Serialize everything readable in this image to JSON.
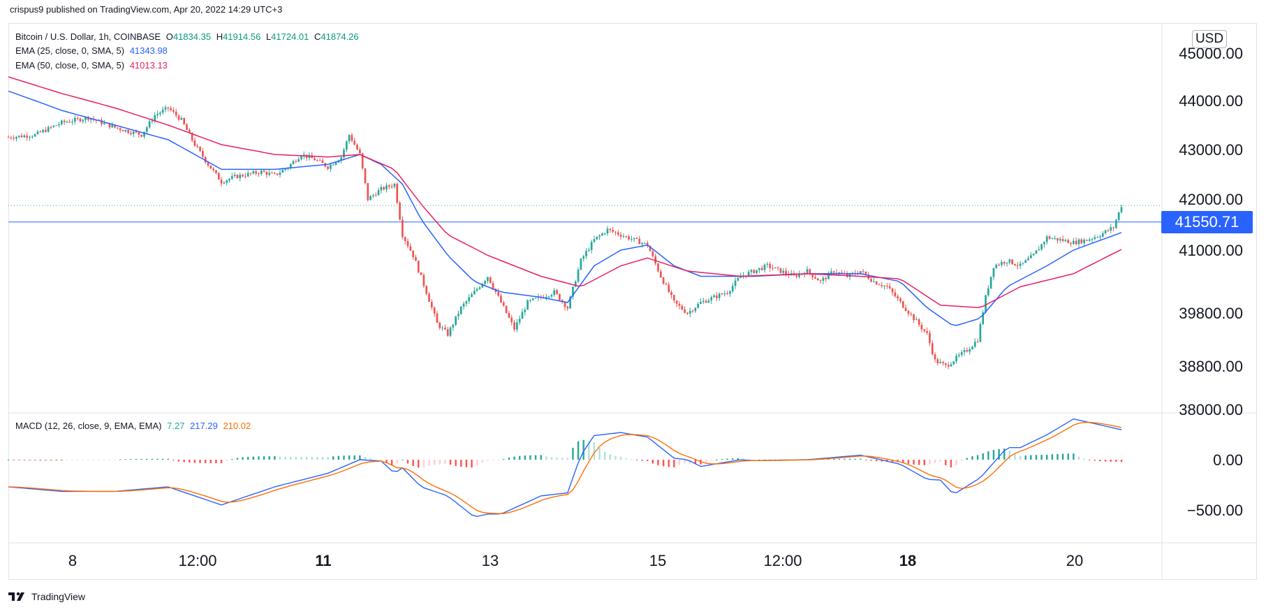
{
  "header": {
    "published": "crispus9 published on TradingView.com, Apr 20, 2022 14:29 UTC+3"
  },
  "legend": {
    "symbol": "Bitcoin / U.S. Dollar, 1h, COINBASE",
    "open_label": "O",
    "open": "41834.35",
    "high_label": "H",
    "high": "41914.56",
    "low_label": "L",
    "low": "41724.01",
    "close_label": "C",
    "close": "41874.26",
    "ema25": "EMA (25, close, 0, SMA, 5)",
    "ema25_value": "41343.98",
    "ema50": "EMA (50, close, 0, SMA, 5)",
    "ema50_value": "41013.13",
    "macd": "MACD (12, 26, close, 9, EMA, EMA)",
    "macd_hist": "7.27",
    "macd_line": "217.29",
    "macd_signal": "210.02"
  },
  "price_axis": {
    "currency": "USD",
    "ticks": [
      "45000.00",
      "44000.00",
      "43000.00",
      "42000.00",
      "41000.00",
      "39800.00",
      "38800.00",
      "38000.00"
    ],
    "current_price_label": "41550.71"
  },
  "macd_axis": {
    "ticks": [
      "0.00",
      "−500.00"
    ]
  },
  "time_axis": {
    "ticks": [
      "8",
      "12:00",
      "11",
      "13",
      "15",
      "12:00",
      "18",
      "20"
    ]
  },
  "footer": {
    "brand": "TradingView"
  },
  "colors": {
    "up": "#26a69a",
    "down": "#ef5350",
    "ema25": "#2962ff",
    "ema50": "#e91e63",
    "macd": "#2962ff",
    "signal": "#ff6d00",
    "price_line": "#2962ff"
  },
  "chart_data": {
    "type": "candlestick",
    "symbol": "Bitcoin / U.S. Dollar",
    "interval": "1h",
    "exchange": "COINBASE",
    "x_labels": [
      "8",
      "12:00",
      "11",
      "13",
      "15",
      "12:00",
      "18",
      "20"
    ],
    "y_ticks": [
      45000,
      44000,
      43000,
      42000,
      41000,
      39800,
      38800,
      38000
    ],
    "current_price": 41550.71,
    "last_close": 41874.26,
    "price_path": [
      [
        0,
        43250
      ],
      [
        10,
        43300
      ],
      [
        20,
        43550
      ],
      [
        30,
        43650
      ],
      [
        40,
        43450
      ],
      [
        50,
        43300
      ],
      [
        55,
        43700
      ],
      [
        60,
        43850
      ],
      [
        65,
        43600
      ],
      [
        70,
        43100
      ],
      [
        75,
        42700
      ],
      [
        80,
        42350
      ],
      [
        85,
        42450
      ],
      [
        90,
        42500
      ],
      [
        95,
        42550
      ],
      [
        100,
        42480
      ],
      [
        105,
        42650
      ],
      [
        110,
        42900
      ],
      [
        115,
        42800
      ],
      [
        120,
        42650
      ],
      [
        125,
        42850
      ],
      [
        128,
        43300
      ],
      [
        132,
        42900
      ],
      [
        135,
        42000
      ],
      [
        140,
        42200
      ],
      [
        145,
        42300
      ],
      [
        148,
        41300
      ],
      [
        152,
        40900
      ],
      [
        157,
        40200
      ],
      [
        161,
        39600
      ],
      [
        165,
        39400
      ],
      [
        170,
        39900
      ],
      [
        175,
        40200
      ],
      [
        180,
        40500
      ],
      [
        185,
        40000
      ],
      [
        190,
        39500
      ],
      [
        195,
        40000
      ],
      [
        200,
        40100
      ],
      [
        205,
        40200
      ],
      [
        210,
        39900
      ],
      [
        215,
        40800
      ],
      [
        220,
        41200
      ],
      [
        225,
        41400
      ],
      [
        230,
        41300
      ],
      [
        235,
        41200
      ],
      [
        240,
        41100
      ],
      [
        245,
        40500
      ],
      [
        250,
        40000
      ],
      [
        255,
        39800
      ],
      [
        260,
        40000
      ],
      [
        265,
        40100
      ],
      [
        270,
        40200
      ],
      [
        275,
        40500
      ],
      [
        280,
        40600
      ],
      [
        285,
        40700
      ],
      [
        290,
        40600
      ],
      [
        295,
        40500
      ],
      [
        300,
        40600
      ],
      [
        305,
        40400
      ],
      [
        310,
        40600
      ],
      [
        315,
        40500
      ],
      [
        320,
        40600
      ],
      [
        325,
        40400
      ],
      [
        330,
        40300
      ],
      [
        335,
        40000
      ],
      [
        340,
        39700
      ],
      [
        345,
        39400
      ],
      [
        348,
        38900
      ],
      [
        352,
        38800
      ],
      [
        356,
        38950
      ],
      [
        360,
        39100
      ],
      [
        364,
        39300
      ],
      [
        367,
        40100
      ],
      [
        370,
        40700
      ],
      [
        375,
        40800
      ],
      [
        380,
        40700
      ],
      [
        385,
        40900
      ],
      [
        390,
        41250
      ],
      [
        395,
        41200
      ],
      [
        400,
        41150
      ],
      [
        405,
        41200
      ],
      [
        410,
        41300
      ],
      [
        415,
        41450
      ],
      [
        418,
        41874
      ]
    ],
    "ema25_path": [
      [
        0,
        44200
      ],
      [
        20,
        43800
      ],
      [
        40,
        43500
      ],
      [
        60,
        43200
      ],
      [
        70,
        42900
      ],
      [
        80,
        42600
      ],
      [
        100,
        42600
      ],
      [
        120,
        42700
      ],
      [
        132,
        42900
      ],
      [
        140,
        42700
      ],
      [
        148,
        42300
      ],
      [
        155,
        41600
      ],
      [
        165,
        40900
      ],
      [
        175,
        40400
      ],
      [
        185,
        40200
      ],
      [
        200,
        40100
      ],
      [
        210,
        40000
      ],
      [
        220,
        40700
      ],
      [
        230,
        41000
      ],
      [
        240,
        41100
      ],
      [
        250,
        40700
      ],
      [
        260,
        40500
      ],
      [
        280,
        40500
      ],
      [
        300,
        40550
      ],
      [
        320,
        40550
      ],
      [
        335,
        40400
      ],
      [
        345,
        39900
      ],
      [
        355,
        39550
      ],
      [
        365,
        39700
      ],
      [
        375,
        40300
      ],
      [
        390,
        40700
      ],
      [
        400,
        41000
      ],
      [
        418,
        41344
      ]
    ],
    "ema50_path": [
      [
        0,
        44500
      ],
      [
        20,
        44150
      ],
      [
        40,
        43850
      ],
      [
        60,
        43500
      ],
      [
        80,
        43100
      ],
      [
        100,
        42900
      ],
      [
        120,
        42850
      ],
      [
        132,
        42900
      ],
      [
        145,
        42600
      ],
      [
        155,
        41900
      ],
      [
        165,
        41300
      ],
      [
        180,
        40900
      ],
      [
        200,
        40500
      ],
      [
        215,
        40300
      ],
      [
        230,
        40700
      ],
      [
        240,
        40850
      ],
      [
        255,
        40600
      ],
      [
        275,
        40500
      ],
      [
        300,
        40550
      ],
      [
        320,
        40500
      ],
      [
        335,
        40450
      ],
      [
        350,
        39950
      ],
      [
        365,
        39900
      ],
      [
        380,
        40300
      ],
      [
        400,
        40550
      ],
      [
        418,
        41013
      ]
    ],
    "macd": {
      "hist_value": 7.27,
      "macd_value": 217.29,
      "signal_value": 210.02,
      "y_ticks": [
        0,
        -500
      ]
    }
  }
}
